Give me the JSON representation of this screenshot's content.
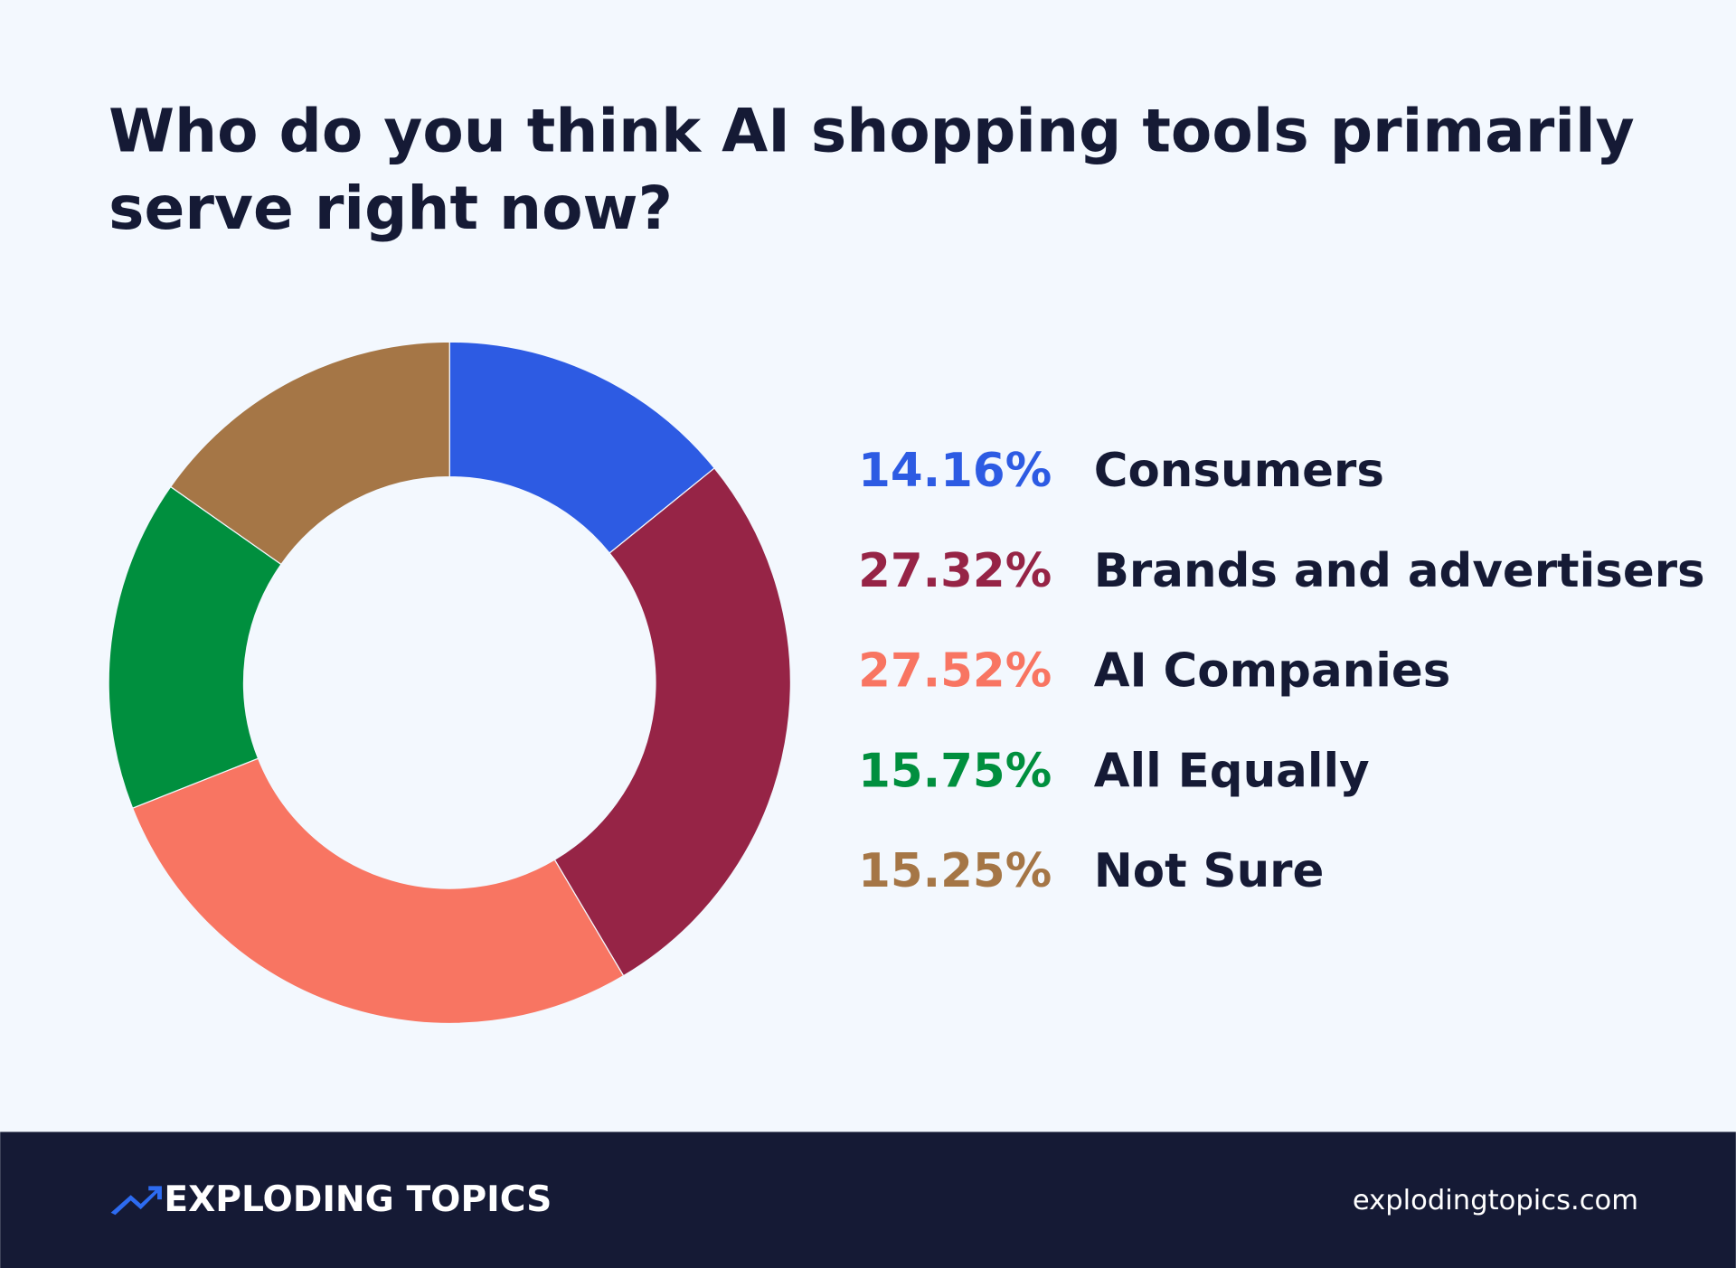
{
  "chart_data": {
    "type": "donut",
    "title": [
      "Who do you think AI shopping tools primarily",
      "serve right now?"
    ],
    "categories": [
      "Consumers",
      "Brands and advertisers",
      "AI Companies",
      "All Equally",
      "Not Sure"
    ],
    "values": [
      14.16,
      27.32,
      27.52,
      15.75,
      15.25
    ],
    "value_labels": [
      "14.16%",
      "27.32%",
      "27.52%",
      "15.75%",
      "15.25%"
    ],
    "colors": [
      "#2d5be3",
      "#962446",
      "#f87562",
      "#008f3e",
      "#a57646"
    ]
  },
  "footer": {
    "brand": "EXPLODING TOPICS",
    "url": "explodingtopics.com"
  }
}
